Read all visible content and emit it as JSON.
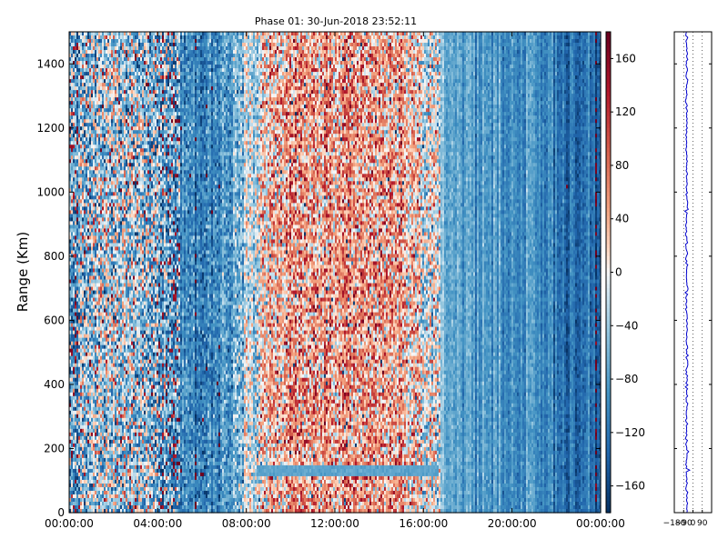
{
  "chart_data": [
    {
      "type": "heatmap",
      "title": "Phase 01: 30-Jun-2018 23:52:11",
      "xlabel": "",
      "ylabel": "Range (Km)",
      "xlim": [
        "00:00:00",
        "24:00:00"
      ],
      "ylim": [
        0,
        1500
      ],
      "x_ticks": [
        "00:00:00",
        "04:00:00",
        "08:00:00",
        "12:00:00",
        "16:00:00",
        "20:00:00",
        "00:00:00"
      ],
      "y_ticks": [
        0,
        200,
        400,
        600,
        800,
        1000,
        1200,
        1400
      ],
      "colormap": "RdBu_r",
      "grid": false,
      "colorbar": {
        "range": [
          -180,
          180
        ],
        "ticks": [
          160,
          120,
          80,
          40,
          0,
          -40,
          -80,
          -120,
          -160
        ],
        "tick_labels": [
          "160",
          "120",
          "80",
          "40",
          "0",
          "−40",
          "−80",
          "−120",
          "−160"
        ],
        "low_color": "#053061",
        "mid_color": "#f7f7f7",
        "high_color": "#67001f"
      },
      "approx_mean_phase_by_hour": [
        {
          "hour": 0,
          "phase": -90
        },
        {
          "hour": 1,
          "phase": -40
        },
        {
          "hour": 2,
          "phase": -30
        },
        {
          "hour": 3,
          "phase": -40
        },
        {
          "hour": 4,
          "phase": -60
        },
        {
          "hour": 5,
          "phase": -90
        },
        {
          "hour": 6,
          "phase": -110
        },
        {
          "hour": 7,
          "phase": -90
        },
        {
          "hour": 8,
          "phase": -20
        },
        {
          "hour": 9,
          "phase": 30
        },
        {
          "hour": 10,
          "phase": 50
        },
        {
          "hour": 11,
          "phase": 50
        },
        {
          "hour": 12,
          "phase": 45
        },
        {
          "hour": 13,
          "phase": 40
        },
        {
          "hour": 14,
          "phase": 50
        },
        {
          "hour": 15,
          "phase": 40
        },
        {
          "hour": 16,
          "phase": 10
        },
        {
          "hour": 17,
          "phase": -60
        },
        {
          "hour": 18,
          "phase": -80
        },
        {
          "hour": 19,
          "phase": -85
        },
        {
          "hour": 20,
          "phase": -90
        },
        {
          "hour": 21,
          "phase": -100
        },
        {
          "hour": 22,
          "phase": -110
        },
        {
          "hour": 23,
          "phase": -130
        }
      ],
      "feature_band": {
        "start": "08:30:00",
        "end": "16:40:00",
        "range_km": [
          115,
          150
        ],
        "phase": -75
      }
    },
    {
      "type": "line",
      "x_ticks": [
        "−180",
        "−90",
        "0",
        "90"
      ],
      "xlim": [
        -180,
        180
      ],
      "ylim": [
        0,
        1500
      ],
      "series_color": "#0000cc",
      "grid": true
    }
  ]
}
